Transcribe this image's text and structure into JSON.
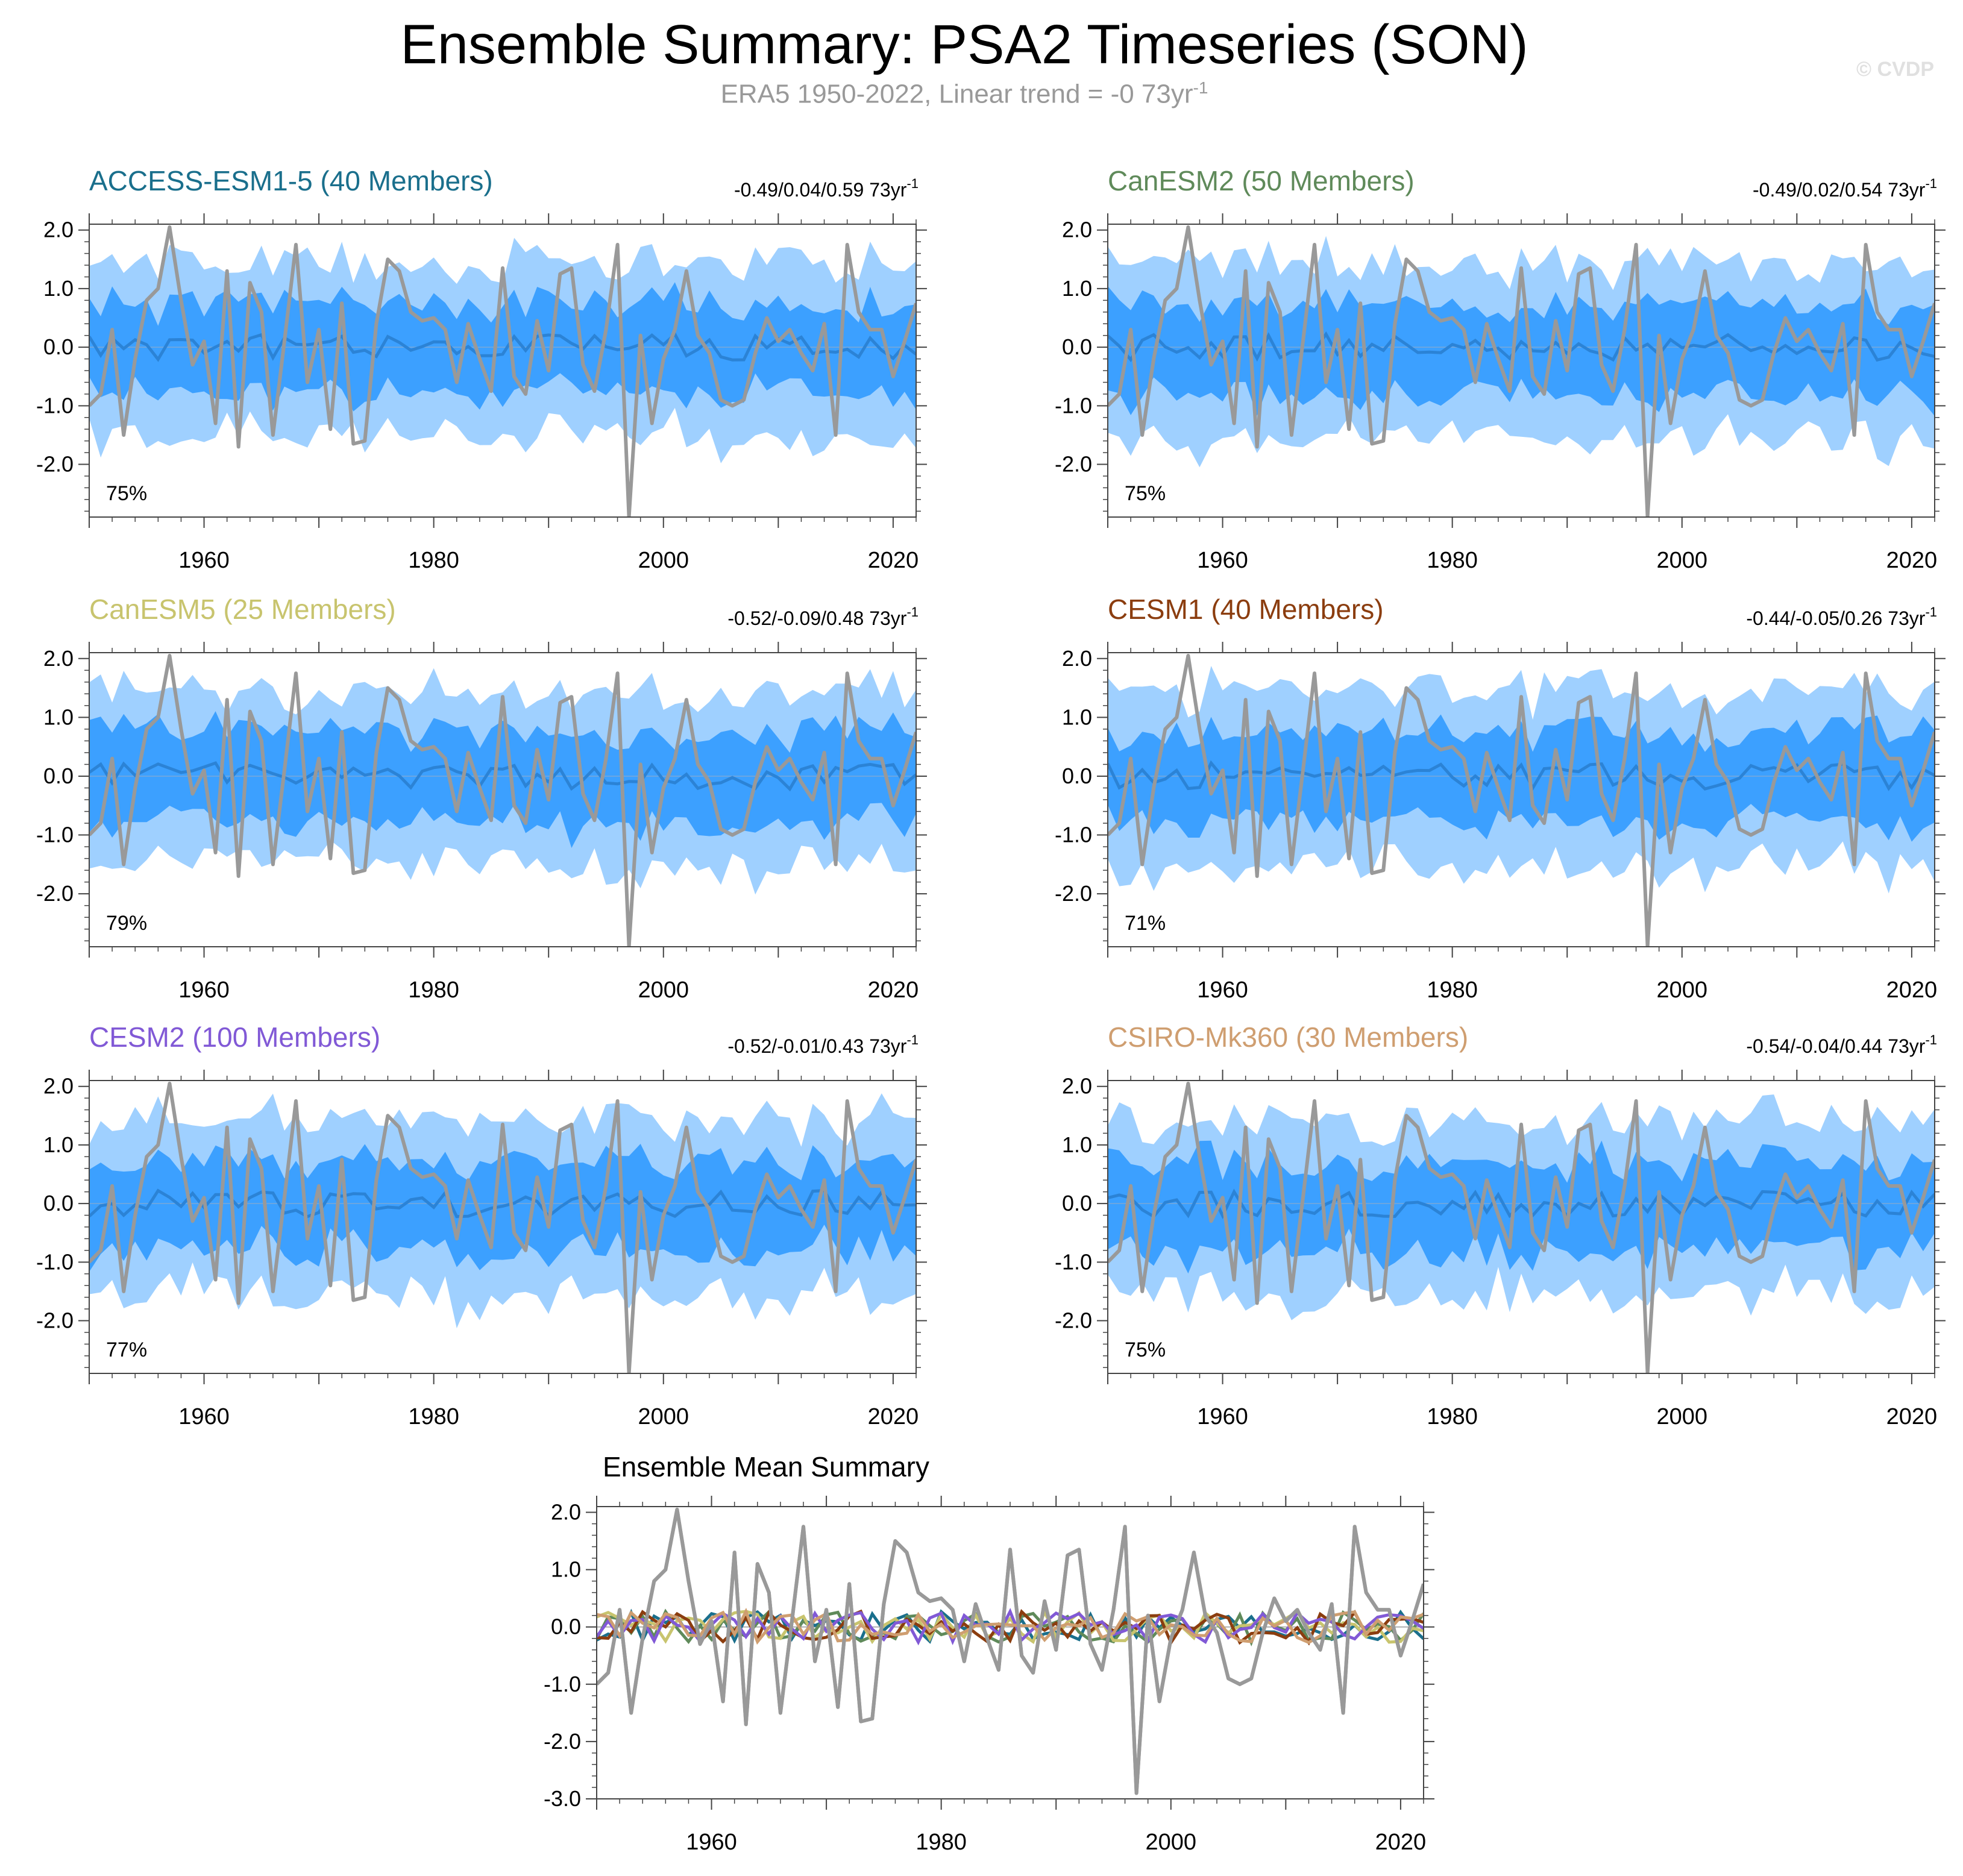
{
  "title": "Ensemble Summary: PSA2 Timeseries (SON)",
  "subtitle": {
    "text": "ERA5 1950-2022, Linear trend = -0 73yr",
    "superscript": "-1"
  },
  "watermark": "© CVDP",
  "colors": {
    "observed": "#999999",
    "ensemble_mean": "#2b83d6",
    "band_25_75": "#3ca0ff",
    "band_5_95": "#9fd0ff"
  },
  "chart_data": [
    {
      "type": "line",
      "title": "ACCESS-ESM1-5 (40 Members)",
      "title_color": "#1a6f8c",
      "trend_label": "-0.49/0.04/0.59 73yr",
      "percent_label": "75%",
      "xlim": [
        1950,
        2022
      ],
      "ylim": [
        -2.9,
        2.1
      ],
      "yticks": [
        -2.0,
        -1.0,
        0.0,
        1.0,
        2.0
      ],
      "ytick_labels": [
        "-2.0",
        "-1.0",
        "0.0",
        "1.0",
        "2.0"
      ],
      "xticks": [
        1960,
        1980,
        2000,
        2020
      ],
      "xtick_labels": [
        "1960",
        "1980",
        "2000",
        "2020"
      ],
      "seed": 11
    },
    {
      "type": "line",
      "title": "CanESM2 (50 Members)",
      "title_color": "#5f8a5a",
      "trend_label": "-0.49/0.02/0.54 73yr",
      "percent_label": "75%",
      "xlim": [
        1950,
        2022
      ],
      "ylim": [
        -2.9,
        2.1
      ],
      "yticks": [
        -2.0,
        -1.0,
        0.0,
        1.0,
        2.0
      ],
      "ytick_labels": [
        "-2.0",
        "-1.0",
        "0.0",
        "1.0",
        "2.0"
      ],
      "xticks": [
        1960,
        1980,
        2000,
        2020
      ],
      "xtick_labels": [
        "1960",
        "1980",
        "2000",
        "2020"
      ],
      "seed": 23
    },
    {
      "type": "line",
      "title": "CanESM5 (25 Members)",
      "title_color": "#c8c46e",
      "trend_label": "-0.52/-0.09/0.48 73yr",
      "percent_label": "79%",
      "xlim": [
        1950,
        2022
      ],
      "ylim": [
        -2.9,
        2.1
      ],
      "yticks": [
        -2.0,
        -1.0,
        0.0,
        1.0,
        2.0
      ],
      "ytick_labels": [
        "-2.0",
        "-1.0",
        "0.0",
        "1.0",
        "2.0"
      ],
      "xticks": [
        1960,
        1980,
        2000,
        2020
      ],
      "xtick_labels": [
        "1960",
        "1980",
        "2000",
        "2020"
      ],
      "seed": 37
    },
    {
      "type": "line",
      "title": "CESM1 (40 Members)",
      "title_color": "#8b3d0f",
      "trend_label": "-0.44/-0.05/0.26 73yr",
      "percent_label": "71%",
      "xlim": [
        1950,
        2022
      ],
      "ylim": [
        -2.9,
        2.1
      ],
      "yticks": [
        -2.0,
        -1.0,
        0.0,
        1.0,
        2.0
      ],
      "ytick_labels": [
        "-2.0",
        "-1.0",
        "0.0",
        "1.0",
        "2.0"
      ],
      "xticks": [
        1960,
        1980,
        2000,
        2020
      ],
      "xtick_labels": [
        "1960",
        "1980",
        "2000",
        "2020"
      ],
      "seed": 41
    },
    {
      "type": "line",
      "title": "CESM2 (100 Members)",
      "title_color": "#8159d6",
      "trend_label": "-0.52/-0.01/0.43 73yr",
      "percent_label": "77%",
      "xlim": [
        1950,
        2022
      ],
      "ylim": [
        -2.9,
        2.1
      ],
      "yticks": [
        -2.0,
        -1.0,
        0.0,
        1.0,
        2.0
      ],
      "ytick_labels": [
        "-2.0",
        "-1.0",
        "0.0",
        "1.0",
        "2.0"
      ],
      "xticks": [
        1960,
        1980,
        2000,
        2020
      ],
      "xtick_labels": [
        "1960",
        "1980",
        "2000",
        "2020"
      ],
      "seed": 53
    },
    {
      "type": "line",
      "title": "CSIRO-Mk360 (30 Members)",
      "title_color": "#cf9e70",
      "trend_label": "-0.54/-0.04/0.44 73yr",
      "percent_label": "75%",
      "xlim": [
        1950,
        2022
      ],
      "ylim": [
        -2.9,
        2.1
      ],
      "yticks": [
        -2.0,
        -1.0,
        0.0,
        1.0,
        2.0
      ],
      "ytick_labels": [
        "-2.0",
        "-1.0",
        "0.0",
        "1.0",
        "2.0"
      ],
      "xticks": [
        1960,
        1980,
        2000,
        2020
      ],
      "xtick_labels": [
        "1960",
        "1980",
        "2000",
        "2020"
      ],
      "seed": 67
    },
    {
      "type": "line",
      "title": "Ensemble Mean Summary",
      "xlim": [
        1950,
        2022
      ],
      "ylim": [
        -3.0,
        2.1
      ],
      "yticks": [
        -3.0,
        -2.0,
        -1.0,
        0.0,
        1.0,
        2.0
      ],
      "ytick_labels": [
        "-3.0",
        "-2.0",
        "-1.0",
        "0.0",
        "1.0",
        "2.0"
      ],
      "xticks": [
        1960,
        1980,
        2000,
        2020
      ],
      "xtick_labels": [
        "1960",
        "1980",
        "2000",
        "2020"
      ]
    }
  ],
  "observed_series": {
    "x_start": 1950,
    "values": [
      -1.0,
      -0.8,
      0.3,
      -1.5,
      -0.2,
      0.8,
      1.0,
      2.05,
      0.8,
      -0.3,
      0.1,
      -1.3,
      1.3,
      -1.7,
      1.1,
      0.6,
      -1.5,
      0.1,
      1.75,
      -0.6,
      0.3,
      -1.4,
      0.75,
      -1.65,
      -1.6,
      0.4,
      1.5,
      1.3,
      0.6,
      0.45,
      0.5,
      0.3,
      -0.6,
      0.4,
      -0.2,
      -0.75,
      1.35,
      -0.5,
      -0.8,
      0.45,
      -0.4,
      1.25,
      1.35,
      -0.3,
      -0.75,
      0.3,
      1.75,
      -2.9,
      0.2,
      -1.3,
      -0.2,
      0.3,
      1.3,
      0.2,
      -0.1,
      -0.9,
      -1.0,
      -0.9,
      -0.1,
      0.5,
      0.1,
      0.3,
      -0.1,
      -0.4,
      0.4,
      -1.5,
      1.75,
      0.6,
      0.3,
      0.3,
      -0.5,
      0.1,
      0.75
    ]
  }
}
